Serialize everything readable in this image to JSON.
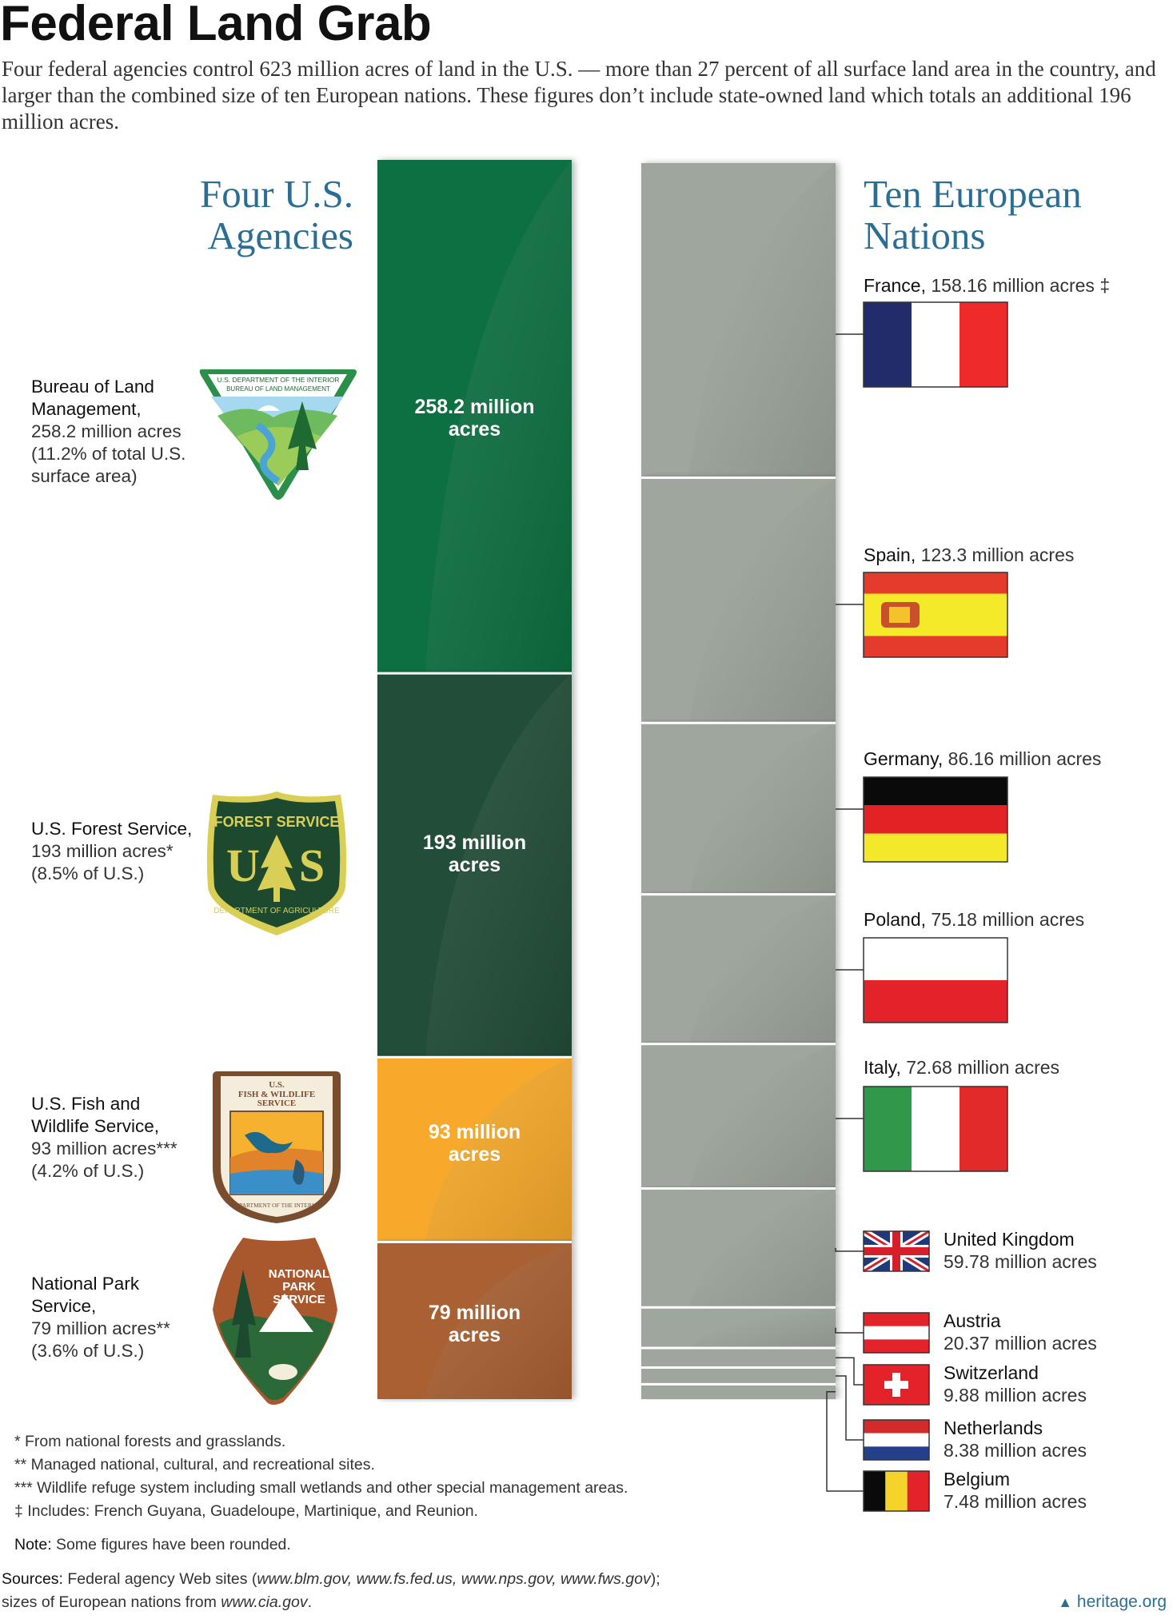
{
  "title": "Federal Land Grab",
  "intro": "Four federal agencies control 623 million acres of land in the U.S. — more than 27 percent of all surface land area in the country, and larger than the combined size of ten European nations. These figures don’t include state-owned land which totals an additional 196 million acres.",
  "left_heading": [
    "Four U.S.",
    "Agencies"
  ],
  "right_heading": [
    "Ten European",
    "Nations"
  ],
  "logo_texts": {
    "blm": [
      "U.S. DEPARTMENT OF THE INTERIOR",
      "BUREAU OF LAND MANAGEMENT"
    ],
    "fs": [
      "FOREST SERVICE",
      "U",
      "S",
      "DEPARTMENT OF AGRICULTURE"
    ],
    "fws": [
      "U.S.",
      "FISH & WILDLIFE",
      "SERVICE",
      "DEPARTMENT OF THE INTERIOR"
    ],
    "nps": [
      "NATIONAL",
      "PARK",
      "SERVICE"
    ]
  },
  "chart_data": {
    "type": "stacked-bar-comparison",
    "units": "million acres",
    "agencies": [
      {
        "name": "Bureau of Land Management,",
        "acres_text": "258.2 million acres",
        "share_text": "(11.2% of total U.S. surface area)",
        "share_lines": [
          "(11.2% of total U.S.",
          "surface area)"
        ],
        "bar_label": [
          "258.2 million",
          "acres"
        ],
        "value": 258.2,
        "color": "#086f42"
      },
      {
        "name": "U.S. Forest Service,",
        "acres_text": "193 million acres*",
        "share_text": "(8.5% of U.S.)",
        "share_lines": [
          "(8.5% of U.S.)"
        ],
        "bar_label": [
          "193 million",
          "acres"
        ],
        "value": 193,
        "color": "#234d38"
      },
      {
        "name": "U.S. Fish and Wildlife Service,",
        "acres_text": "93 million acres***",
        "share_text": "(4.2% of U.S.)",
        "share_lines": [
          "(4.2% of U.S.)"
        ],
        "bar_label": [
          "93 million",
          "acres"
        ],
        "value": 93,
        "color": "#f6a92a"
      },
      {
        "name": "National Park Service,",
        "acres_text": "79 million acres**",
        "share_text": "(3.6% of U.S.)",
        "share_lines": [
          "(3.6% of U.S.)"
        ],
        "bar_label": [
          "79 million",
          "acres"
        ],
        "value": 79,
        "color": "#a96130"
      }
    ],
    "nations": [
      {
        "name": "France,",
        "acres_text": "158.16 million acres ‡",
        "value": 158.16
      },
      {
        "name": "Spain,",
        "acres_text": "123.3 million acres",
        "value": 123.3
      },
      {
        "name": "Germany,",
        "acres_text": "86.16 million acres",
        "value": 86.16
      },
      {
        "name": "Poland,",
        "acres_text": "75.18 million acres",
        "value": 75.18
      },
      {
        "name": "Italy,",
        "acres_text": "72.68 million acres",
        "value": 72.68
      },
      {
        "name": "United Kingdom",
        "acres_text": "59.78 million acres",
        "value": 59.78
      },
      {
        "name": "Austria",
        "acres_text": "20.37 million acres",
        "value": 20.37
      },
      {
        "name": "Switzerland",
        "acres_text": "9.88 million acres",
        "value": 9.88
      },
      {
        "name": "Netherlands",
        "acres_text": "8.38 million acres",
        "value": 8.38
      },
      {
        "name": "Belgium",
        "acres_text": "7.48 million acres",
        "value": 7.48
      }
    ],
    "nation_bar_color": "#9ea69d"
  },
  "footnotes": [
    "* From national forests and grasslands.",
    "** Managed national, cultural, and recreational sites.",
    "*** Wildlife refuge system including small wetlands and other special management areas.",
    "‡ Includes: French Guyana, Guadeloupe, Martinique, and Reunion."
  ],
  "note_label": "Note:",
  "note_text": " Some figures have been rounded.",
  "sources_label": "Sources:",
  "sources_text_1": " Federal agency Web sites (",
  "sources_sites": "www.blm.gov, www.fs.fed.us, www.nps.gov, www.fws.gov",
  "sources_text_2": ");",
  "sources_line2_pre": "sizes of European nations from ",
  "sources_line2_site": "www.cia.gov",
  "sources_line2_post": ".",
  "heritage": "heritage.org",
  "flag_colors": {
    "france": [
      "#232c6b",
      "#ffffff",
      "#ee2b2a"
    ],
    "spain": [
      "#e33b2c",
      "#f4ea2a"
    ],
    "germany": [
      "#0a0a0a",
      "#e32226",
      "#f4e82a"
    ],
    "poland": [
      "#ffffff",
      "#e3222a"
    ],
    "italy": [
      "#31974a",
      "#ffffff",
      "#e32a2a"
    ],
    "uk": [
      "#1f3a7a",
      "#ffffff",
      "#d61f2a"
    ],
    "austria": [
      "#e3222a",
      "#ffffff"
    ],
    "switzerland": [
      "#e3222a",
      "#ffffff"
    ],
    "netherlands": [
      "#d42a2a",
      "#ffffff",
      "#23418a"
    ],
    "belgium": [
      "#0a0a0a",
      "#f4d42a",
      "#e3222a"
    ]
  }
}
